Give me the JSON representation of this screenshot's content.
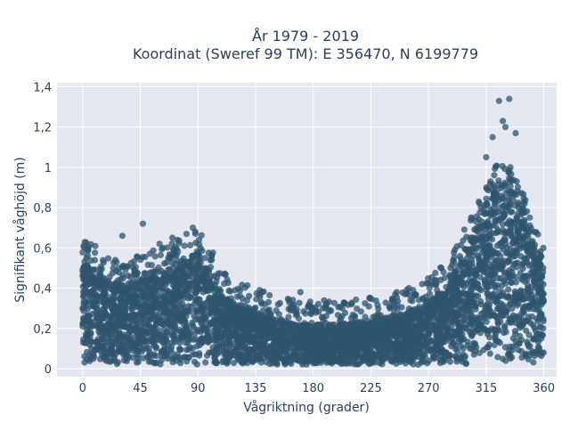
{
  "chart_data": {
    "type": "scatter",
    "title_line1": "År 1979 - 2019",
    "title_line2": "Koordinat (Sweref 99 TM): E 356470, N 6199779",
    "xlabel": "Vågriktning (grader)",
    "ylabel": "Signifikant våghöjd (m)",
    "xlim": [
      -20,
      370
    ],
    "ylim": [
      -0.04,
      1.42
    ],
    "x_ticks": [
      0,
      45,
      90,
      135,
      180,
      225,
      270,
      315,
      360
    ],
    "x_tick_labels": [
      "0",
      "45",
      "90",
      "135",
      "180",
      "225",
      "270",
      "315",
      "360"
    ],
    "y_ticks": [
      0,
      0.2,
      0.4,
      0.6,
      0.8,
      1.0,
      1.2,
      1.4
    ],
    "y_tick_labels": [
      "0",
      "0,2",
      "0,4",
      "0,6",
      "0,8",
      "1",
      "1,2",
      "1,4"
    ],
    "grid": true,
    "marker_color": "#2e566e",
    "plot_background": "#e5e8f1",
    "envelope": {
      "direction": [
        0,
        10,
        20,
        30,
        45,
        60,
        75,
        90,
        100,
        110,
        120,
        135,
        150,
        165,
        180,
        200,
        225,
        250,
        270,
        285,
        300,
        315,
        325,
        335,
        345,
        355,
        360
      ],
      "typical_max_height": [
        0.52,
        0.5,
        0.44,
        0.42,
        0.44,
        0.48,
        0.53,
        0.58,
        0.48,
        0.36,
        0.32,
        0.28,
        0.25,
        0.22,
        0.22,
        0.22,
        0.24,
        0.27,
        0.33,
        0.42,
        0.6,
        0.8,
        0.92,
        0.88,
        0.75,
        0.55,
        0.52
      ]
    },
    "outliers": [
      {
        "x": 325,
        "y": 1.33
      },
      {
        "x": 333,
        "y": 1.34
      },
      {
        "x": 328,
        "y": 1.23
      },
      {
        "x": 330,
        "y": 1.2
      },
      {
        "x": 338,
        "y": 1.17
      },
      {
        "x": 320,
        "y": 1.15
      },
      {
        "x": 315,
        "y": 1.05
      },
      {
        "x": 345,
        "y": 0.82
      },
      {
        "x": 47,
        "y": 0.72
      },
      {
        "x": 86,
        "y": 0.7
      },
      {
        "x": 70,
        "y": 0.65
      },
      {
        "x": 31,
        "y": 0.66
      },
      {
        "x": 88,
        "y": 0.67
      },
      {
        "x": 60,
        "y": 0.62
      },
      {
        "x": 140,
        "y": 0.38
      },
      {
        "x": 170,
        "y": 0.38
      },
      {
        "x": 190,
        "y": 0.32
      },
      {
        "x": 210,
        "y": 0.32
      },
      {
        "x": 265,
        "y": 0.42
      },
      {
        "x": 280,
        "y": 0.5
      },
      {
        "x": 290,
        "y": 0.53
      }
    ]
  }
}
